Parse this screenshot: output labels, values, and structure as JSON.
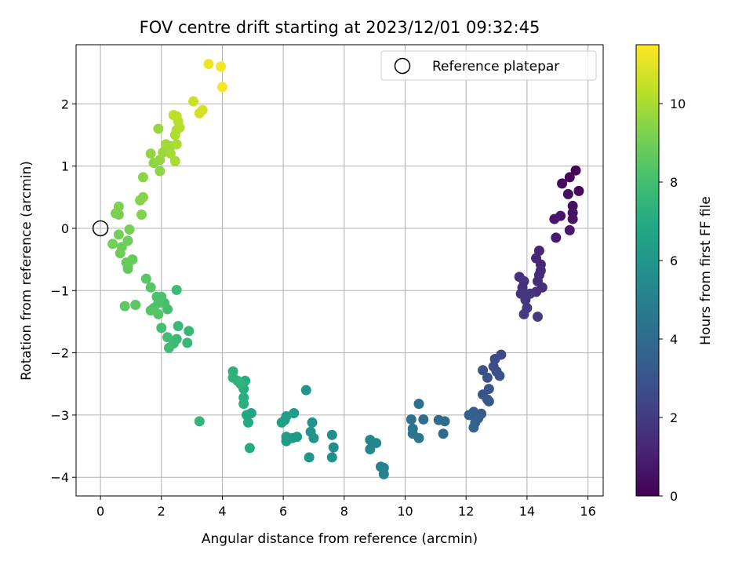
{
  "chart_data": {
    "type": "scatter",
    "title": "FOV centre drift starting at 2023/12/01 09:32:45",
    "xlabel": "Angular distance from reference (arcmin)",
    "ylabel": "Rotation from reference (arcmin)",
    "xlim": [
      -0.8,
      16.5
    ],
    "ylim": [
      -4.3,
      2.95
    ],
    "xticks": [
      0,
      2,
      4,
      6,
      8,
      10,
      12,
      14,
      16
    ],
    "yticks": [
      -4,
      -3,
      -2,
      -1,
      0,
      1,
      2
    ],
    "grid": true,
    "colorbar": {
      "label": "Hours from first FF file",
      "range": [
        0,
        11.5
      ],
      "ticks": [
        0,
        2,
        4,
        6,
        8,
        10
      ],
      "colormap": "viridis"
    },
    "legend": {
      "position": "top-right",
      "entries": [
        {
          "label": "Reference platepar",
          "marker": "open-circle",
          "x": 0,
          "y": 0
        }
      ]
    },
    "series": [
      {
        "name": "FOV centre",
        "points": [
          {
            "x": 15.6,
            "y": 0.93,
            "h": 0.1
          },
          {
            "x": 15.4,
            "y": 0.82,
            "h": 0.2
          },
          {
            "x": 15.7,
            "y": 0.6,
            "h": 0.3
          },
          {
            "x": 15.15,
            "y": 0.72,
            "h": 0.35
          },
          {
            "x": 15.35,
            "y": 0.55,
            "h": 0.45
          },
          {
            "x": 15.5,
            "y": 0.36,
            "h": 0.5
          },
          {
            "x": 15.5,
            "y": 0.25,
            "h": 0.55
          },
          {
            "x": 15.5,
            "y": 0.15,
            "h": 0.6
          },
          {
            "x": 15.1,
            "y": 0.2,
            "h": 0.7
          },
          {
            "x": 14.9,
            "y": 0.15,
            "h": 0.75
          },
          {
            "x": 15.4,
            "y": -0.03,
            "h": 0.8
          },
          {
            "x": 14.95,
            "y": -0.15,
            "h": 0.9
          },
          {
            "x": 14.4,
            "y": -0.36,
            "h": 1.2
          },
          {
            "x": 14.3,
            "y": -0.48,
            "h": 1.25
          },
          {
            "x": 14.45,
            "y": -0.58,
            "h": 1.3
          },
          {
            "x": 14.45,
            "y": -0.68,
            "h": 1.35
          },
          {
            "x": 14.4,
            "y": -0.75,
            "h": 1.4
          },
          {
            "x": 14.35,
            "y": -0.85,
            "h": 1.45
          },
          {
            "x": 14.5,
            "y": -0.95,
            "h": 1.5
          },
          {
            "x": 14.3,
            "y": -1.02,
            "h": 1.55
          },
          {
            "x": 13.75,
            "y": -0.78,
            "h": 1.6
          },
          {
            "x": 13.9,
            "y": -0.85,
            "h": 1.65
          },
          {
            "x": 13.85,
            "y": -0.95,
            "h": 1.7
          },
          {
            "x": 13.8,
            "y": -1.05,
            "h": 1.75
          },
          {
            "x": 14.1,
            "y": -1.05,
            "h": 1.8
          },
          {
            "x": 13.95,
            "y": -1.15,
            "h": 1.85
          },
          {
            "x": 14.0,
            "y": -1.28,
            "h": 1.9
          },
          {
            "x": 13.9,
            "y": -1.38,
            "h": 1.95
          },
          {
            "x": 14.35,
            "y": -1.42,
            "h": 2.0
          },
          {
            "x": 13.15,
            "y": -2.03,
            "h": 2.6
          },
          {
            "x": 12.95,
            "y": -2.1,
            "h": 2.65
          },
          {
            "x": 12.9,
            "y": -2.22,
            "h": 2.7
          },
          {
            "x": 13.0,
            "y": -2.3,
            "h": 2.75
          },
          {
            "x": 13.1,
            "y": -2.37,
            "h": 2.8
          },
          {
            "x": 12.55,
            "y": -2.28,
            "h": 2.85
          },
          {
            "x": 12.7,
            "y": -2.4,
            "h": 2.9
          },
          {
            "x": 12.75,
            "y": -2.58,
            "h": 2.95
          },
          {
            "x": 12.55,
            "y": -2.67,
            "h": 3.0
          },
          {
            "x": 12.7,
            "y": -2.75,
            "h": 3.1
          },
          {
            "x": 12.75,
            "y": -2.78,
            "h": 3.15
          },
          {
            "x": 12.5,
            "y": -2.98,
            "h": 3.3
          },
          {
            "x": 12.25,
            "y": -2.95,
            "h": 3.4
          },
          {
            "x": 12.1,
            "y": -3.0,
            "h": 3.5
          },
          {
            "x": 12.4,
            "y": -3.05,
            "h": 3.55
          },
          {
            "x": 12.3,
            "y": -3.12,
            "h": 3.6
          },
          {
            "x": 12.25,
            "y": -3.2,
            "h": 3.7
          },
          {
            "x": 11.3,
            "y": -3.1,
            "h": 4.0
          },
          {
            "x": 11.1,
            "y": -3.08,
            "h": 4.05
          },
          {
            "x": 11.25,
            "y": -3.3,
            "h": 4.1
          },
          {
            "x": 10.6,
            "y": -3.07,
            "h": 4.2
          },
          {
            "x": 10.45,
            "y": -2.82,
            "h": 4.25
          },
          {
            "x": 10.2,
            "y": -3.07,
            "h": 4.3
          },
          {
            "x": 10.25,
            "y": -3.22,
            "h": 4.35
          },
          {
            "x": 10.25,
            "y": -3.3,
            "h": 4.4
          },
          {
            "x": 10.45,
            "y": -3.37,
            "h": 4.45
          },
          {
            "x": 9.2,
            "y": -3.83,
            "h": 5.0
          },
          {
            "x": 9.3,
            "y": -3.85,
            "h": 5.05
          },
          {
            "x": 9.3,
            "y": -3.95,
            "h": 5.1
          },
          {
            "x": 8.85,
            "y": -3.4,
            "h": 5.2
          },
          {
            "x": 9.05,
            "y": -3.45,
            "h": 5.25
          },
          {
            "x": 8.85,
            "y": -3.55,
            "h": 5.3
          },
          {
            "x": 7.6,
            "y": -3.32,
            "h": 5.6
          },
          {
            "x": 7.65,
            "y": -3.52,
            "h": 5.65
          },
          {
            "x": 7.6,
            "y": -3.68,
            "h": 5.7
          },
          {
            "x": 6.95,
            "y": -3.12,
            "h": 5.8
          },
          {
            "x": 6.9,
            "y": -3.27,
            "h": 5.85
          },
          {
            "x": 7.0,
            "y": -3.37,
            "h": 5.9
          },
          {
            "x": 6.75,
            "y": -2.6,
            "h": 5.95
          },
          {
            "x": 6.85,
            "y": -3.68,
            "h": 6.0
          },
          {
            "x": 6.45,
            "y": -3.35,
            "h": 6.1
          },
          {
            "x": 6.3,
            "y": -3.37,
            "h": 6.15
          },
          {
            "x": 6.1,
            "y": -3.35,
            "h": 6.2
          },
          {
            "x": 6.1,
            "y": -3.42,
            "h": 6.25
          },
          {
            "x": 6.35,
            "y": -2.97,
            "h": 6.3
          },
          {
            "x": 6.1,
            "y": -3.02,
            "h": 6.35
          },
          {
            "x": 6.05,
            "y": -3.08,
            "h": 6.4
          },
          {
            "x": 5.95,
            "y": -3.12,
            "h": 6.45
          },
          {
            "x": 4.95,
            "y": -2.97,
            "h": 6.8
          },
          {
            "x": 4.8,
            "y": -3.0,
            "h": 6.85
          },
          {
            "x": 4.85,
            "y": -3.12,
            "h": 6.9
          },
          {
            "x": 4.9,
            "y": -3.53,
            "h": 7.0
          },
          {
            "x": 4.75,
            "y": -2.45,
            "h": 7.1
          },
          {
            "x": 4.7,
            "y": -2.58,
            "h": 7.15
          },
          {
            "x": 4.7,
            "y": -2.72,
            "h": 7.2
          },
          {
            "x": 4.7,
            "y": -2.82,
            "h": 7.25
          },
          {
            "x": 4.35,
            "y": -2.3,
            "h": 7.3
          },
          {
            "x": 4.35,
            "y": -2.4,
            "h": 7.35
          },
          {
            "x": 4.5,
            "y": -2.45,
            "h": 7.4
          },
          {
            "x": 4.6,
            "y": -2.5,
            "h": 7.45
          },
          {
            "x": 3.25,
            "y": -3.1,
            "h": 7.5
          },
          {
            "x": 2.9,
            "y": -1.65,
            "h": 7.6
          },
          {
            "x": 2.85,
            "y": -1.84,
            "h": 7.65
          },
          {
            "x": 2.55,
            "y": -1.57,
            "h": 7.7
          },
          {
            "x": 2.5,
            "y": -1.78,
            "h": 7.75
          },
          {
            "x": 2.4,
            "y": -1.85,
            "h": 7.8
          },
          {
            "x": 2.5,
            "y": -0.99,
            "h": 7.85
          },
          {
            "x": 2.2,
            "y": -1.75,
            "h": 7.9
          },
          {
            "x": 2.25,
            "y": -1.92,
            "h": 7.95
          },
          {
            "x": 2.2,
            "y": -1.3,
            "h": 8.0
          },
          {
            "x": 2.0,
            "y": -1.6,
            "h": 8.05
          },
          {
            "x": 2.1,
            "y": -1.2,
            "h": 8.1
          },
          {
            "x": 2.0,
            "y": -1.1,
            "h": 8.15
          },
          {
            "x": 1.85,
            "y": -1.1,
            "h": 8.2
          },
          {
            "x": 1.9,
            "y": -1.2,
            "h": 8.25
          },
          {
            "x": 1.75,
            "y": -1.28,
            "h": 8.3
          },
          {
            "x": 1.65,
            "y": -1.32,
            "h": 8.35
          },
          {
            "x": 1.9,
            "y": -1.38,
            "h": 8.4
          },
          {
            "x": 1.65,
            "y": -0.95,
            "h": 8.45
          },
          {
            "x": 1.5,
            "y": -0.81,
            "h": 8.5
          },
          {
            "x": 1.15,
            "y": -1.23,
            "h": 8.55
          },
          {
            "x": 0.8,
            "y": -1.25,
            "h": 8.6
          },
          {
            "x": 0.9,
            "y": -0.6,
            "h": 8.65
          },
          {
            "x": 0.9,
            "y": -0.65,
            "h": 8.7
          },
          {
            "x": 1.05,
            "y": -0.5,
            "h": 8.75
          },
          {
            "x": 0.85,
            "y": -0.55,
            "h": 8.8
          },
          {
            "x": 0.7,
            "y": -0.3,
            "h": 8.85
          },
          {
            "x": 0.65,
            "y": -0.4,
            "h": 8.9
          },
          {
            "x": 0.9,
            "y": -0.2,
            "h": 8.95
          },
          {
            "x": 0.6,
            "y": -0.1,
            "h": 9.0
          },
          {
            "x": 0.4,
            "y": -0.25,
            "h": 9.05
          },
          {
            "x": 0.95,
            "y": -0.02,
            "h": 9.1
          },
          {
            "x": 0.6,
            "y": 0.22,
            "h": 9.15
          },
          {
            "x": 0.5,
            "y": 0.24,
            "h": 9.2
          },
          {
            "x": 0.6,
            "y": 0.35,
            "h": 9.25
          },
          {
            "x": 1.35,
            "y": 0.22,
            "h": 9.3
          },
          {
            "x": 1.3,
            "y": 0.45,
            "h": 9.35
          },
          {
            "x": 1.4,
            "y": 0.5,
            "h": 9.4
          },
          {
            "x": 1.4,
            "y": 0.82,
            "h": 9.45
          },
          {
            "x": 1.95,
            "y": 0.92,
            "h": 9.5
          },
          {
            "x": 1.75,
            "y": 1.05,
            "h": 9.55
          },
          {
            "x": 1.65,
            "y": 1.2,
            "h": 9.6
          },
          {
            "x": 1.95,
            "y": 1.1,
            "h": 9.65
          },
          {
            "x": 1.9,
            "y": 1.6,
            "h": 9.7
          },
          {
            "x": 2.05,
            "y": 1.22,
            "h": 9.75
          },
          {
            "x": 2.2,
            "y": 1.3,
            "h": 9.8
          },
          {
            "x": 2.3,
            "y": 1.32,
            "h": 9.85
          },
          {
            "x": 2.15,
            "y": 1.35,
            "h": 9.9
          },
          {
            "x": 2.3,
            "y": 1.2,
            "h": 9.95
          },
          {
            "x": 2.45,
            "y": 1.08,
            "h": 10.0
          },
          {
            "x": 2.5,
            "y": 1.35,
            "h": 10.05
          },
          {
            "x": 2.45,
            "y": 1.5,
            "h": 10.1
          },
          {
            "x": 2.5,
            "y": 1.58,
            "h": 10.15
          },
          {
            "x": 2.6,
            "y": 1.62,
            "h": 10.2
          },
          {
            "x": 2.55,
            "y": 1.72,
            "h": 10.25
          },
          {
            "x": 2.5,
            "y": 1.8,
            "h": 10.3
          },
          {
            "x": 2.4,
            "y": 1.82,
            "h": 10.35
          },
          {
            "x": 3.05,
            "y": 2.04,
            "h": 10.6
          },
          {
            "x": 3.25,
            "y": 1.85,
            "h": 10.7
          },
          {
            "x": 3.35,
            "y": 1.9,
            "h": 10.75
          },
          {
            "x": 3.55,
            "y": 2.64,
            "h": 11.2
          },
          {
            "x": 3.95,
            "y": 2.6,
            "h": 11.3
          },
          {
            "x": 4.0,
            "y": 2.27,
            "h": 11.4
          }
        ]
      }
    ]
  }
}
